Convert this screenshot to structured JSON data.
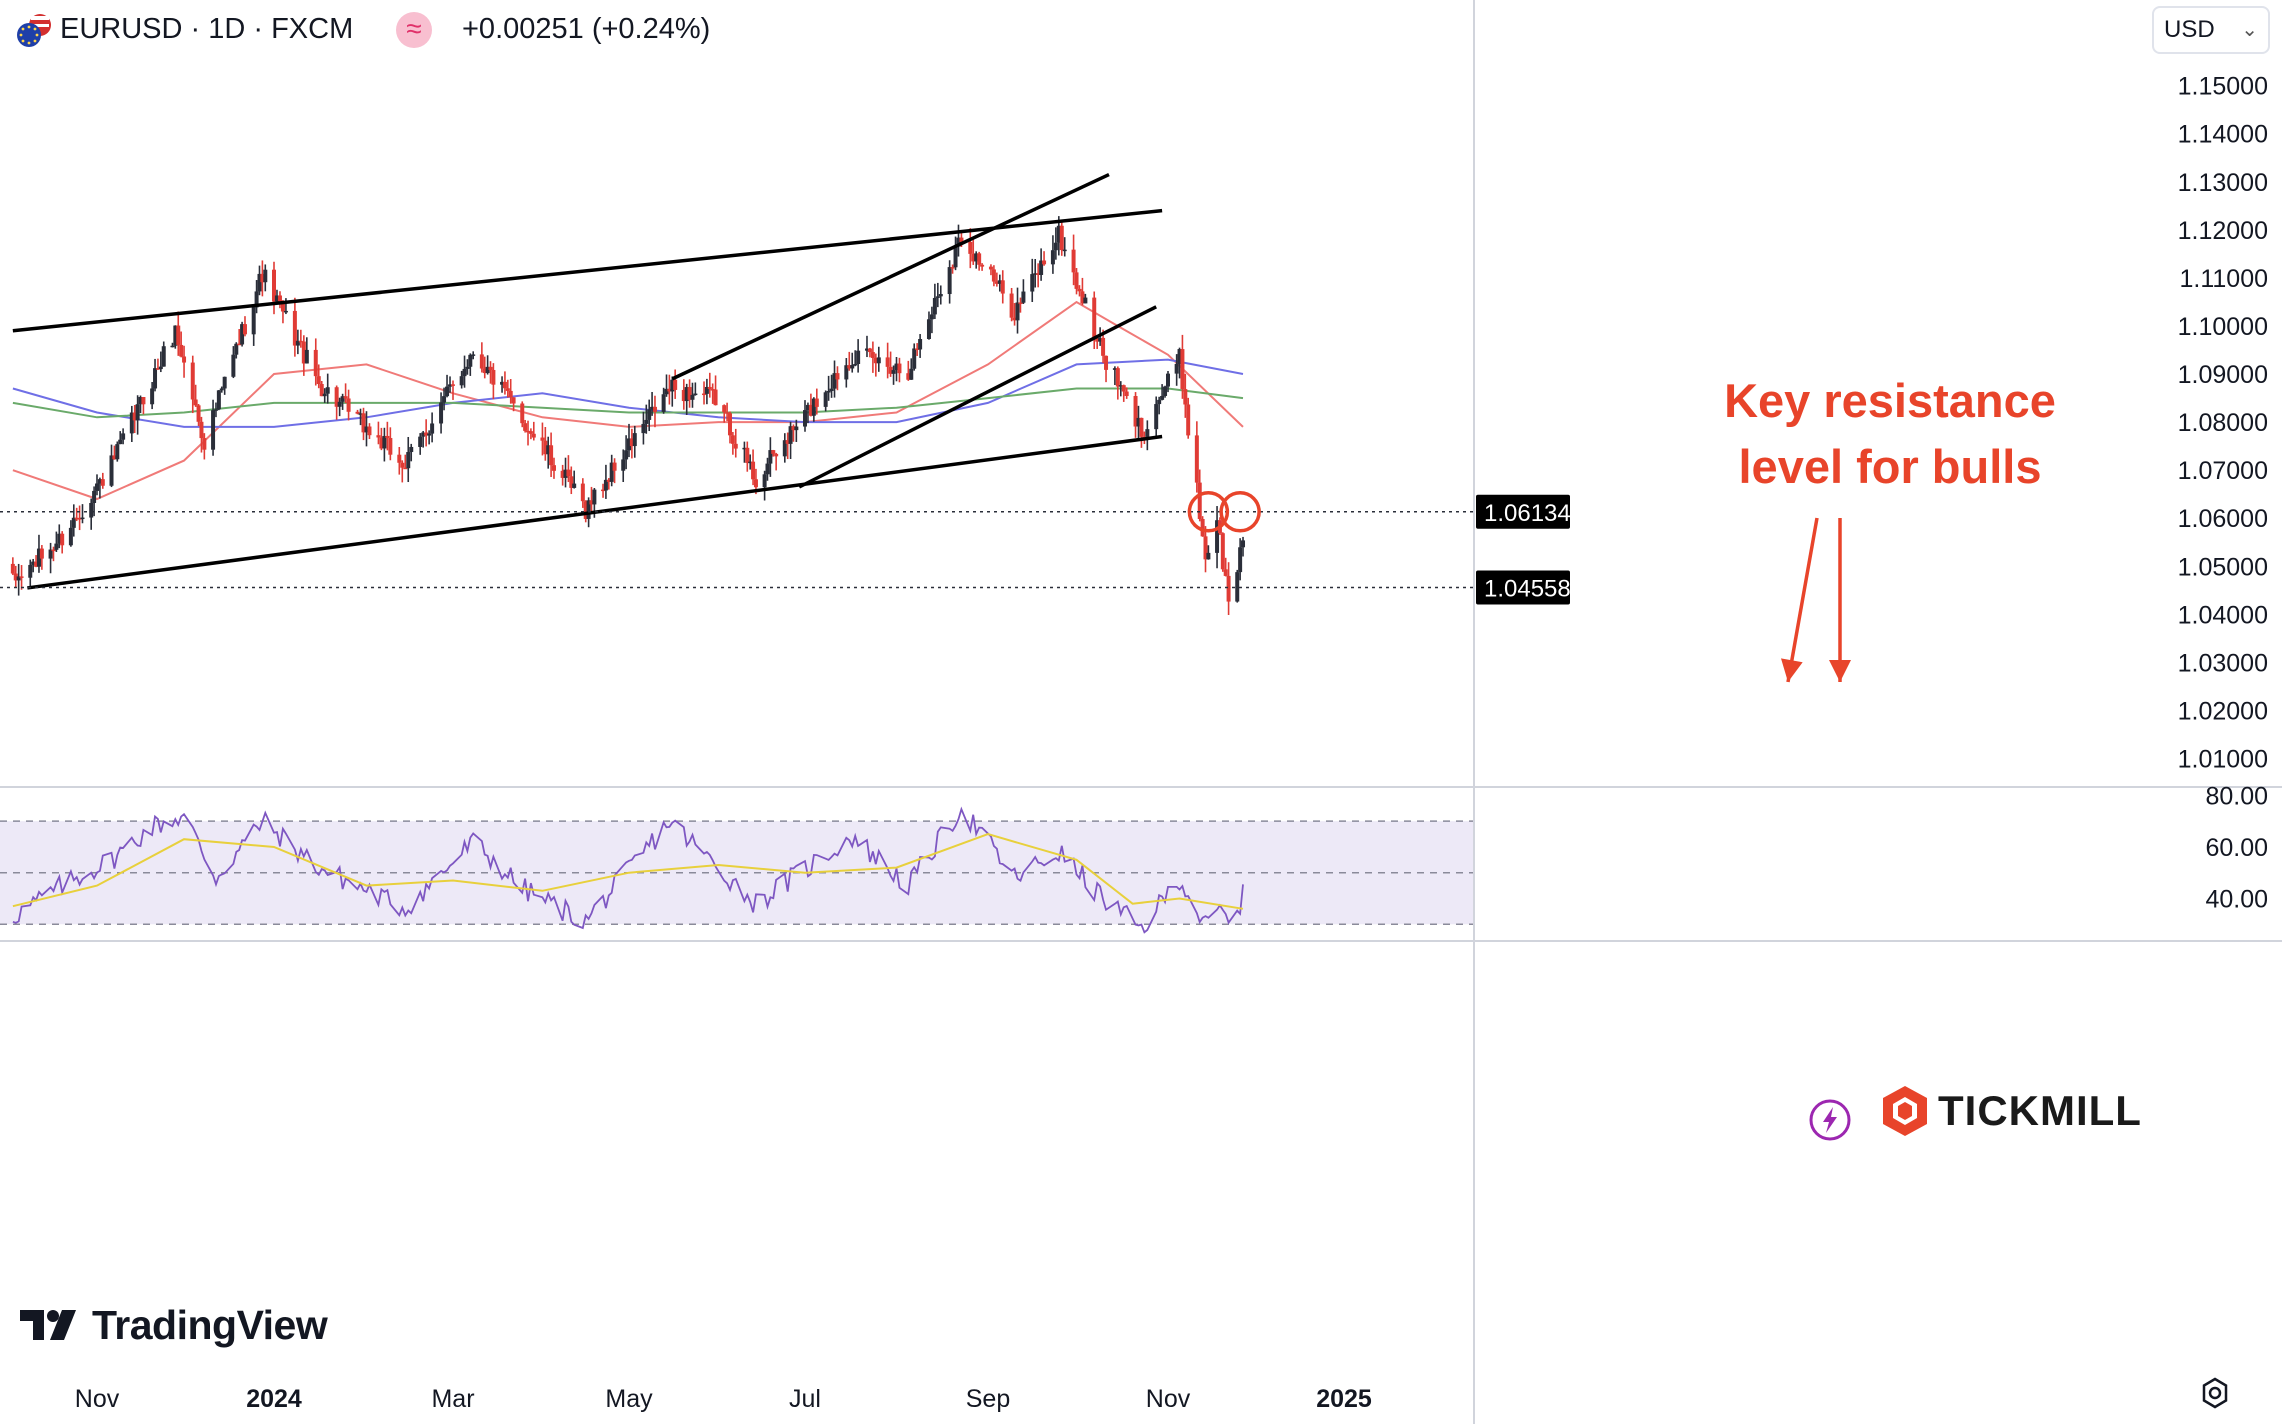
{
  "header": {
    "symbol_line": "EURUSD · 1D · FXCM",
    "change": "+0.00251 (+0.24%)",
    "compare_symbol": "≈"
  },
  "currency_select": {
    "value": "USD"
  },
  "annotation": {
    "line1": "Key resistance",
    "line2": "level for bulls"
  },
  "price_labels": {
    "resistance": "1.06134",
    "current": "1.04558"
  },
  "logos": {
    "tradingview": "TradingView",
    "tickmill": "TICKMILL"
  },
  "colors": {
    "bull": "#2a2e39",
    "bear": "#e03b35",
    "ma_red": "#f07a78",
    "ma_blue": "#6f6fe6",
    "ma_green": "#6aaa6a",
    "rsi": "#7e57c2",
    "rsi_ma": "#e8d03c",
    "annotation": "#e8442a",
    "rsi_band": "#ede9f7"
  },
  "chart_data": [
    {
      "type": "line",
      "title": "EURUSD · 1D · FXCM",
      "y_ticks": [
        "1.15000",
        "1.14000",
        "1.13000",
        "1.12000",
        "1.11000",
        "1.10000",
        "1.09000",
        "1.08000",
        "1.07000",
        "1.06000",
        "1.05000",
        "1.04000",
        "1.03000",
        "1.02000",
        "1.01000"
      ],
      "ylim": [
        1.0045,
        1.1595
      ],
      "x_ticks": [
        "Nov",
        "2024",
        "Mar",
        "May",
        "Jul",
        "Sep",
        "Nov",
        "2025"
      ],
      "x_tick_dates": [
        "2023-11-01",
        "2024-01-01",
        "2024-03-01",
        "2024-05-01",
        "2024-07-01",
        "2024-09-01",
        "2024-11-01",
        "2025-01-01"
      ],
      "date_range": [
        "2023-10-03",
        "2024-11-27"
      ],
      "series": [
        {
          "style": "candlestick",
          "key_points": [
            [
              "2023-10-03",
              1.0465
            ],
            [
              "2023-10-20",
              1.056
            ],
            [
              "2023-11-06",
              1.071
            ],
            [
              "2023-11-28",
              1.099
            ],
            [
              "2023-12-08",
              1.076
            ],
            [
              "2023-12-28",
              1.111
            ],
            [
              "2024-01-16",
              1.088
            ],
            [
              "2024-02-14",
              1.071
            ],
            [
              "2024-03-08",
              1.095
            ],
            [
              "2024-04-16",
              1.062
            ],
            [
              "2024-05-15",
              1.087
            ],
            [
              "2024-05-31",
              1.085
            ],
            [
              "2024-06-14",
              1.068
            ],
            [
              "2024-07-17",
              1.094
            ],
            [
              "2024-08-05",
              1.091
            ],
            [
              "2024-08-23",
              1.119
            ],
            [
              "2024-09-10",
              1.103
            ],
            [
              "2024-09-25",
              1.119
            ],
            [
              "2024-10-10",
              1.094
            ],
            [
              "2024-10-23",
              1.078
            ],
            [
              "2024-11-05",
              1.093
            ],
            [
              "2024-11-14",
              1.052
            ],
            [
              "2024-11-18",
              1.06
            ],
            [
              "2024-11-22",
              1.042
            ],
            [
              "2024-11-25",
              1.05
            ],
            [
              "2024-11-27",
              1.056
            ]
          ]
        }
      ],
      "moving_averages": [
        {
          "color": "red",
          "points": [
            [
              "2023-10-03",
              1.07
            ],
            [
              "2023-11-01",
              1.064
            ],
            [
              "2023-12-01",
              1.072
            ],
            [
              "2024-01-01",
              1.09
            ],
            [
              "2024-02-01",
              1.092
            ],
            [
              "2024-03-01",
              1.086
            ],
            [
              "2024-04-01",
              1.081
            ],
            [
              "2024-05-01",
              1.079
            ],
            [
              "2024-06-01",
              1.08
            ],
            [
              "2024-07-01",
              1.08
            ],
            [
              "2024-08-01",
              1.082
            ],
            [
              "2024-09-01",
              1.092
            ],
            [
              "2024-10-01",
              1.105
            ],
            [
              "2024-10-15",
              1.1
            ],
            [
              "2024-11-01",
              1.094
            ],
            [
              "2024-11-27",
              1.079
            ]
          ]
        },
        {
          "color": "blue",
          "points": [
            [
              "2023-10-03",
              1.087
            ],
            [
              "2023-11-01",
              1.082
            ],
            [
              "2023-12-01",
              1.079
            ],
            [
              "2024-01-01",
              1.079
            ],
            [
              "2024-02-01",
              1.081
            ],
            [
              "2024-03-01",
              1.084
            ],
            [
              "2024-04-01",
              1.086
            ],
            [
              "2024-05-01",
              1.083
            ],
            [
              "2024-06-01",
              1.081
            ],
            [
              "2024-07-01",
              1.08
            ],
            [
              "2024-08-01",
              1.08
            ],
            [
              "2024-09-01",
              1.084
            ],
            [
              "2024-10-01",
              1.092
            ],
            [
              "2024-11-01",
              1.093
            ],
            [
              "2024-11-27",
              1.09
            ]
          ]
        },
        {
          "color": "green",
          "points": [
            [
              "2023-10-03",
              1.084
            ],
            [
              "2023-11-01",
              1.081
            ],
            [
              "2023-12-01",
              1.082
            ],
            [
              "2024-01-01",
              1.084
            ],
            [
              "2024-02-01",
              1.084
            ],
            [
              "2024-03-01",
              1.084
            ],
            [
              "2024-04-01",
              1.083
            ],
            [
              "2024-05-01",
              1.082
            ],
            [
              "2024-06-01",
              1.082
            ],
            [
              "2024-07-01",
              1.082
            ],
            [
              "2024-08-01",
              1.083
            ],
            [
              "2024-09-01",
              1.085
            ],
            [
              "2024-10-01",
              1.087
            ],
            [
              "2024-11-01",
              1.087
            ],
            [
              "2024-11-27",
              1.085
            ]
          ]
        }
      ],
      "trendlines": [
        {
          "name": "upper channel",
          "from": [
            "2023-10-03",
            1.099
          ],
          "to": [
            "2024-10-30",
            1.124
          ]
        },
        {
          "name": "lower channel",
          "from": [
            "2023-10-08",
            1.0455
          ],
          "to": [
            "2024-10-30",
            1.077
          ]
        },
        {
          "name": "wedge upper",
          "from": [
            "2024-05-16",
            1.089
          ],
          "to": [
            "2024-10-12",
            1.1315
          ]
        },
        {
          "name": "wedge lower",
          "from": [
            "2024-06-29",
            1.0665
          ],
          "to": [
            "2024-10-28",
            1.104
          ]
        }
      ],
      "horizontal_levels": [
        1.06134,
        1.04558
      ]
    },
    {
      "type": "line",
      "title": "RSI",
      "y_ticks": [
        "80.00",
        "60.00",
        "40.00"
      ],
      "ylim": [
        23.9,
        82.1
      ],
      "band": [
        30,
        70
      ],
      "midline": 50,
      "series": [
        {
          "name": "RSI",
          "key_points": [
            [
              "2023-10-03",
              33
            ],
            [
              "2023-10-20",
              45
            ],
            [
              "2023-11-06",
              55
            ],
            [
              "2023-11-20",
              68
            ],
            [
              "2023-12-01",
              72
            ],
            [
              "2023-12-12",
              48
            ],
            [
              "2023-12-28",
              70
            ],
            [
              "2024-01-16",
              52
            ],
            [
              "2024-02-14",
              36
            ],
            [
              "2024-03-08",
              62
            ],
            [
              "2024-03-25",
              44
            ],
            [
              "2024-04-16",
              31
            ],
            [
              "2024-05-15",
              70
            ],
            [
              "2024-06-14",
              38
            ],
            [
              "2024-07-17",
              64
            ],
            [
              "2024-08-05",
              45
            ],
            [
              "2024-08-23",
              75
            ],
            [
              "2024-09-10",
              48
            ],
            [
              "2024-09-25",
              58
            ],
            [
              "2024-10-10",
              40
            ],
            [
              "2024-10-23",
              28
            ],
            [
              "2024-11-05",
              48
            ],
            [
              "2024-11-14",
              29
            ],
            [
              "2024-11-20",
              36
            ],
            [
              "2024-11-22",
              28
            ],
            [
              "2024-11-27",
              41
            ]
          ]
        },
        {
          "name": "RSI-based MA",
          "key_points": [
            [
              "2023-10-03",
              37
            ],
            [
              "2023-11-01",
              45
            ],
            [
              "2023-12-01",
              63
            ],
            [
              "2024-01-01",
              60
            ],
            [
              "2024-02-01",
              45
            ],
            [
              "2024-03-01",
              47
            ],
            [
              "2024-04-01",
              43
            ],
            [
              "2024-05-01",
              50
            ],
            [
              "2024-06-01",
              53
            ],
            [
              "2024-07-01",
              50
            ],
            [
              "2024-08-01",
              52
            ],
            [
              "2024-09-01",
              65
            ],
            [
              "2024-10-01",
              55
            ],
            [
              "2024-10-20",
              38
            ],
            [
              "2024-11-05",
              40
            ],
            [
              "2024-11-27",
              36
            ]
          ]
        }
      ]
    }
  ]
}
